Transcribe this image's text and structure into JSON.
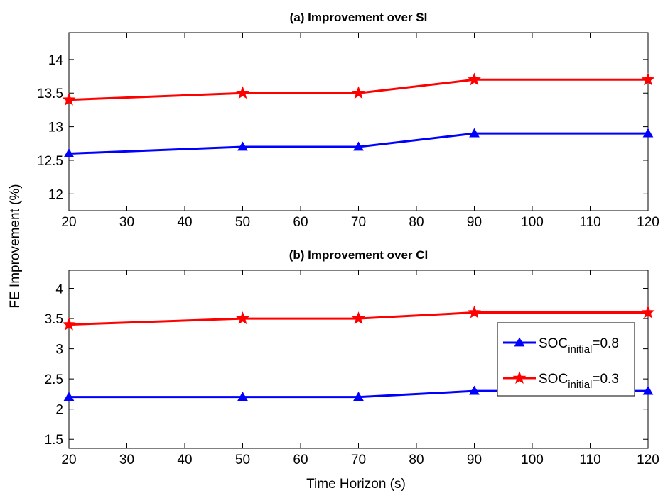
{
  "figure": {
    "ylabel": "FE Improvement (%)",
    "xlabel": "Time Horizon (s)"
  },
  "colors": {
    "soc_08": "#0000ff",
    "soc_03": "#ff0000",
    "axis": "#000000",
    "background": "#ffffff"
  },
  "legend": {
    "placement": "right",
    "entries": [
      {
        "prefix": "SOC",
        "subscript": "initial",
        "suffix": "=0.8",
        "marker": "triangle-icon",
        "color_key": "soc_08"
      },
      {
        "prefix": "SOC",
        "subscript": "initial",
        "suffix": "=0.3",
        "marker": "star-icon",
        "color_key": "soc_03"
      }
    ]
  },
  "chart_data": [
    {
      "type": "line",
      "title": "(a) Improvement over SI",
      "xlabel": "",
      "ylabel": "",
      "x": [
        20,
        50,
        70,
        90,
        120
      ],
      "xlim": [
        20,
        120
      ],
      "ylim": [
        11.75,
        14.4
      ],
      "xticks": [
        20,
        30,
        40,
        50,
        60,
        70,
        80,
        90,
        100,
        110,
        120
      ],
      "yticks": [
        12,
        12.5,
        13,
        13.5,
        14
      ],
      "ytick_labels": [
        "12",
        "12.5",
        "13",
        "13.5",
        "14"
      ],
      "grid": false,
      "series": [
        {
          "name": "SOC_initial=0.8",
          "color": "#0000ff",
          "marker": "triangle",
          "values": [
            12.6,
            12.7,
            12.7,
            12.9,
            12.9
          ]
        },
        {
          "name": "SOC_initial=0.3",
          "color": "#ff0000",
          "marker": "star",
          "values": [
            13.4,
            13.5,
            13.5,
            13.7,
            13.7
          ]
        }
      ]
    },
    {
      "type": "line",
      "title": "(b) Improvement over CI",
      "xlabel": "Time Horizon (s)",
      "ylabel": "",
      "x": [
        20,
        50,
        70,
        90,
        120
      ],
      "xlim": [
        20,
        120
      ],
      "ylim": [
        1.35,
        4.3
      ],
      "xticks": [
        20,
        30,
        40,
        50,
        60,
        70,
        80,
        90,
        100,
        110,
        120
      ],
      "yticks": [
        1.5,
        2,
        2.5,
        3,
        3.5,
        4
      ],
      "ytick_labels": [
        "1.5",
        "2",
        "2.5",
        "3",
        "3.5",
        "4"
      ],
      "grid": false,
      "series": [
        {
          "name": "SOC_initial=0.8",
          "color": "#0000ff",
          "marker": "triangle",
          "values": [
            2.2,
            2.2,
            2.2,
            2.3,
            2.3
          ]
        },
        {
          "name": "SOC_initial=0.3",
          "color": "#ff0000",
          "marker": "star",
          "values": [
            3.4,
            3.5,
            3.5,
            3.6,
            3.6
          ]
        }
      ]
    }
  ]
}
